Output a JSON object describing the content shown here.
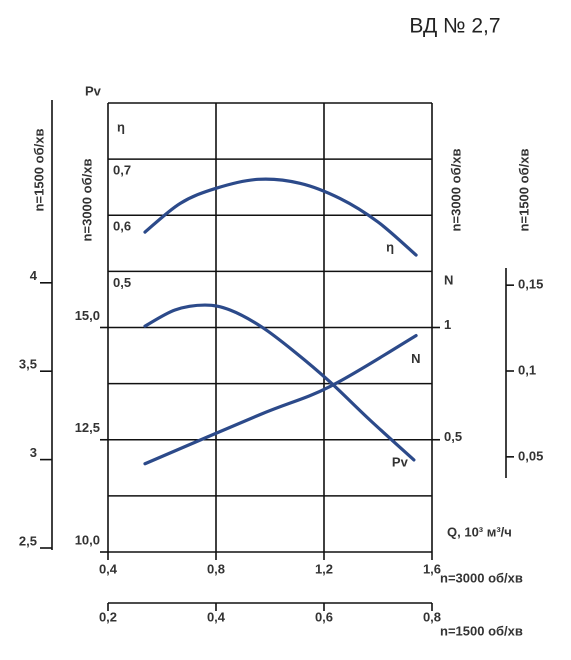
{
  "chart_data": {
    "type": "line",
    "title": "ВД № 2,7",
    "grid": true,
    "q_label": "Q, 10³ м³/ч",
    "x_axes": [
      {
        "label": "n=3000 об/хв",
        "xlim": [
          0.4,
          1.6
        ],
        "xticks": [
          {
            "value": 0.4,
            "label": "0,4"
          },
          {
            "value": 0.8,
            "label": "0,8"
          },
          {
            "value": 1.2,
            "label": "1,2"
          },
          {
            "value": 1.6,
            "label": "1,6"
          }
        ]
      },
      {
        "label": "n=1500 об/хв",
        "xlim": [
          0.2,
          0.8
        ],
        "xticks": [
          {
            "value": 0.2,
            "label": "0,2"
          },
          {
            "value": 0.4,
            "label": "0,4"
          },
          {
            "value": 0.6,
            "label": "0,6"
          },
          {
            "value": 0.8,
            "label": "0,8"
          }
        ]
      }
    ],
    "y_axes": [
      {
        "title": "Pv",
        "label": "n=3000 об/хв",
        "ylim": [
          10,
          20
        ],
        "yticks": [
          {
            "value": 10,
            "label": "10,0"
          },
          {
            "value": 12.5,
            "label": "12,5"
          },
          {
            "value": 15,
            "label": "15,0"
          }
        ]
      },
      {
        "title": "η",
        "ylim": [
          0,
          0.8
        ],
        "yticks": [
          {
            "value": 0.5,
            "label": "0,5"
          },
          {
            "value": 0.6,
            "label": "0,6"
          },
          {
            "value": 0.7,
            "label": "0,7"
          }
        ]
      },
      {
        "title": "N",
        "label": "n=3000 об/хв",
        "ylim": [
          0,
          2
        ],
        "yticks": [
          {
            "value": 0.5,
            "label": "0,5"
          },
          1
        ]
      },
      {
        "label": "n=1500 об/хв",
        "ylim": [
          2.5,
          5
        ],
        "yticks": [
          {
            "value": 2.5,
            "label": "2,5"
          },
          3,
          {
            "value": 3.5,
            "label": "3,5"
          },
          4
        ]
      },
      {
        "label": "n=1500 об/хв",
        "ylim": [
          0.04,
          0.16
        ],
        "yticks": [
          {
            "value": 0.05,
            "label": "0,05"
          },
          {
            "value": 0.1,
            "label": "0,1"
          },
          {
            "value": 0.15,
            "label": "0,15"
          }
        ]
      }
    ],
    "series": [
      {
        "name": "η",
        "color": "#2c4a8a",
        "axis": 1,
        "x": [
          0.537,
          0.667,
          0.8,
          0.956,
          1.111,
          1.259,
          1.4,
          1.541
        ],
        "values": [
          0.57,
          0.621,
          0.648,
          0.664,
          0.657,
          0.63,
          0.588,
          0.529
        ]
      },
      {
        "name": "Pv",
        "color": "#2c4a8a",
        "axis": 0,
        "x": [
          0.537,
          0.648,
          0.759,
          0.852,
          0.97,
          1.093,
          1.222,
          1.37,
          1.533
        ],
        "values": [
          15.03,
          15.39,
          15.5,
          15.39,
          15.01,
          14.45,
          13.79,
          12.94,
          12.05
        ]
      },
      {
        "name": "N",
        "color": "#2c4a8a",
        "axis": 2,
        "x": [
          0.537,
          0.963,
          1.222,
          1.541
        ],
        "values": [
          0.393,
          0.612,
          0.737,
          0.964
        ]
      }
    ]
  }
}
